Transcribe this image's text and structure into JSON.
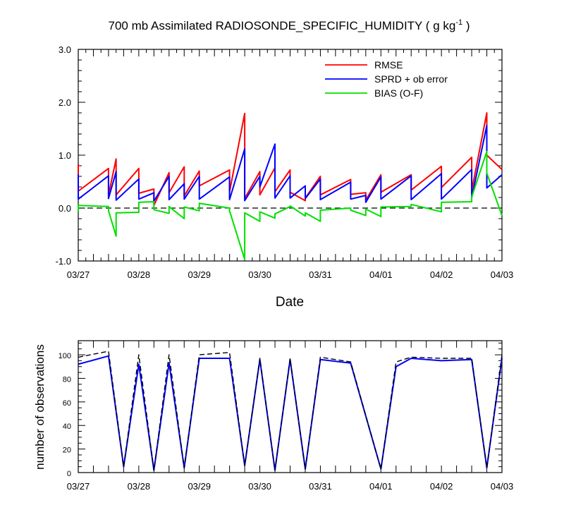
{
  "chart_data": [
    {
      "type": "line",
      "title": "700 mb Assimilated RADIOSONDE_SPECIFIC_HUMIDITY ( g kg",
      "title_superscript": "-1",
      "title_suffix": " )",
      "xlabel": "Date",
      "ylabel": "",
      "ylim": [
        -1.0,
        3.0
      ],
      "y_ticks": [
        "-1.0",
        "0.0",
        "1.0",
        "2.0",
        "3.0"
      ],
      "x_ticks": [
        "03/27",
        "03/28",
        "03/29",
        "03/30",
        "03/31",
        "04/01",
        "04/02",
        "04/03"
      ],
      "legend_position": "top-right",
      "zero_line": "dashed",
      "series": [
        {
          "name": "RMSE",
          "color": "#ff0000",
          "points": [
            [
              0,
              0.83
            ],
            [
              0,
              0.32
            ],
            [
              1.0,
              0.75
            ],
            [
              1.0,
              0.25
            ],
            [
              1.25,
              0.93
            ],
            [
              1.25,
              0.25
            ],
            [
              2.0,
              0.75
            ],
            [
              2.0,
              0.28
            ],
            [
              2.5,
              0.36
            ],
            [
              2.5,
              0.05
            ],
            [
              3.0,
              0.67
            ],
            [
              3.0,
              0.29
            ],
            [
              3.5,
              0.78
            ],
            [
              3.5,
              0.23
            ],
            [
              4.0,
              0.7
            ],
            [
              4.0,
              0.42
            ],
            [
              5.0,
              0.72
            ],
            [
              5.0,
              0.31
            ],
            [
              5.5,
              1.79
            ],
            [
              5.5,
              0.18
            ],
            [
              6.0,
              0.69
            ],
            [
              6.0,
              0.25
            ],
            [
              6.5,
              0.76
            ],
            [
              6.5,
              0.31
            ],
            [
              7.0,
              0.72
            ],
            [
              7.0,
              0.3
            ],
            [
              7.5,
              0.14
            ],
            [
              7.5,
              0.19
            ],
            [
              8.0,
              0.6
            ],
            [
              8.0,
              0.25
            ],
            [
              9.0,
              0.54
            ],
            [
              9.0,
              0.26
            ],
            [
              9.5,
              0.29
            ],
            [
              9.5,
              0.15
            ],
            [
              10.0,
              0.63
            ],
            [
              10.0,
              0.3
            ],
            [
              11.0,
              0.63
            ],
            [
              11.0,
              0.34
            ],
            [
              12.0,
              0.79
            ],
            [
              12.0,
              0.39
            ],
            [
              13.0,
              0.96
            ],
            [
              13.0,
              0.33
            ],
            [
              13.5,
              1.8
            ],
            [
              13.5,
              1.0
            ],
            [
              14.0,
              0.73
            ]
          ]
        },
        {
          "name": "SPRD + ob error",
          "color": "#0000ff",
          "points": [
            [
              0,
              0.64
            ],
            [
              0,
              0.17
            ],
            [
              1.0,
              0.61
            ],
            [
              1.0,
              0.18
            ],
            [
              1.25,
              0.69
            ],
            [
              1.25,
              0.15
            ],
            [
              2.0,
              0.55
            ],
            [
              2.0,
              0.17
            ],
            [
              2.5,
              0.29
            ],
            [
              2.5,
              0.13
            ],
            [
              3.0,
              0.6
            ],
            [
              3.0,
              0.16
            ],
            [
              3.5,
              0.46
            ],
            [
              3.5,
              0.17
            ],
            [
              4.0,
              0.6
            ],
            [
              4.0,
              0.17
            ],
            [
              5.0,
              0.59
            ],
            [
              5.0,
              0.16
            ],
            [
              5.5,
              1.12
            ],
            [
              5.5,
              0.14
            ],
            [
              6.0,
              0.6
            ],
            [
              6.0,
              0.4
            ],
            [
              6.5,
              1.21
            ],
            [
              6.5,
              0.19
            ],
            [
              7.0,
              0.61
            ],
            [
              7.0,
              0.19
            ],
            [
              7.5,
              0.42
            ],
            [
              7.5,
              0.18
            ],
            [
              8.0,
              0.55
            ],
            [
              8.0,
              0.16
            ],
            [
              9.0,
              0.49
            ],
            [
              9.0,
              0.17
            ],
            [
              9.5,
              0.24
            ],
            [
              9.5,
              0.11
            ],
            [
              10.0,
              0.59
            ],
            [
              10.0,
              0.17
            ],
            [
              11.0,
              0.61
            ],
            [
              11.0,
              0.16
            ],
            [
              12.0,
              0.65
            ],
            [
              12.0,
              0.17
            ],
            [
              13.0,
              0.73
            ],
            [
              13.0,
              0.2
            ],
            [
              13.5,
              1.56
            ],
            [
              13.5,
              0.38
            ],
            [
              14.0,
              0.63
            ]
          ]
        },
        {
          "name": "BIAS (O-F)",
          "color": "#00e000",
          "points": [
            [
              0,
              -0.07
            ],
            [
              0,
              0.05
            ],
            [
              1.0,
              0.03
            ],
            [
              1.0,
              -0.05
            ],
            [
              1.25,
              -0.53
            ],
            [
              1.25,
              -0.09
            ],
            [
              2.0,
              -0.08
            ],
            [
              2.0,
              0.11
            ],
            [
              2.5,
              0.12
            ],
            [
              2.5,
              -0.03
            ],
            [
              3.0,
              -0.1
            ],
            [
              3.0,
              0.03
            ],
            [
              3.5,
              -0.2
            ],
            [
              3.5,
              0.02
            ],
            [
              4.0,
              -0.05
            ],
            [
              4.0,
              0.09
            ],
            [
              5.0,
              0.0
            ],
            [
              5.0,
              -0.05
            ],
            [
              5.5,
              -0.97
            ],
            [
              5.5,
              -0.09
            ],
            [
              6.0,
              -0.25
            ],
            [
              6.0,
              -0.07
            ],
            [
              6.5,
              -0.19
            ],
            [
              6.5,
              -0.11
            ],
            [
              7.0,
              0.03
            ],
            [
              7.0,
              0.04
            ],
            [
              7.5,
              -0.15
            ],
            [
              7.5,
              -0.09
            ],
            [
              8.0,
              -0.25
            ],
            [
              8.0,
              -0.04
            ],
            [
              9.0,
              0.0
            ],
            [
              9.0,
              -0.04
            ],
            [
              9.5,
              -0.14
            ],
            [
              9.5,
              -0.02
            ],
            [
              10.0,
              -0.16
            ],
            [
              10.0,
              0.02
            ],
            [
              11.0,
              0.03
            ],
            [
              11.0,
              0.07
            ],
            [
              12.0,
              -0.07
            ],
            [
              12.0,
              0.11
            ],
            [
              13.0,
              0.12
            ],
            [
              13.0,
              0.21
            ],
            [
              13.5,
              1.07
            ],
            [
              13.5,
              0.66
            ],
            [
              14.0,
              -0.14
            ]
          ]
        }
      ]
    },
    {
      "type": "line",
      "title": "",
      "xlabel": "",
      "ylabel": "number of observations",
      "ylim": [
        0,
        112
      ],
      "y_ticks": [
        "0",
        "20",
        "40",
        "60",
        "80",
        "100"
      ],
      "x_ticks": [
        "03/27",
        "03/28",
        "03/29",
        "03/30",
        "03/31",
        "04/01",
        "04/02",
        "04/03"
      ],
      "series": [
        {
          "color": "#0000ff",
          "style": "solid",
          "points": [
            [
              0,
              92
            ],
            [
              1.0,
              99
            ],
            [
              1.5,
              5
            ],
            [
              2.0,
              92
            ],
            [
              2.5,
              2
            ],
            [
              3.0,
              93
            ],
            [
              3.5,
              4
            ],
            [
              4.0,
              97
            ],
            [
              5.0,
              97
            ],
            [
              5.5,
              6
            ],
            [
              6.0,
              96
            ],
            [
              6.5,
              2
            ],
            [
              7.0,
              96
            ],
            [
              7.5,
              3
            ],
            [
              8.0,
              96
            ],
            [
              9.0,
              93
            ],
            [
              10.0,
              3
            ],
            [
              10.0,
              3
            ],
            [
              10.5,
              90
            ],
            [
              11.0,
              97
            ],
            [
              12.0,
              95
            ],
            [
              13.0,
              96
            ],
            [
              13.5,
              4
            ],
            [
              14.0,
              97
            ]
          ]
        },
        {
          "color": "#000000",
          "style": "dashed",
          "points": [
            [
              0,
              98
            ],
            [
              1.0,
              103
            ],
            [
              1.5,
              5
            ],
            [
              2.0,
              100
            ],
            [
              2.5,
              2
            ],
            [
              3.0,
              100
            ],
            [
              3.5,
              4
            ],
            [
              4.0,
              100
            ],
            [
              5.0,
              102
            ],
            [
              5.5,
              6
            ],
            [
              6.0,
              97
            ],
            [
              6.5,
              2
            ],
            [
              7.0,
              97
            ],
            [
              7.5,
              3
            ],
            [
              8.0,
              98
            ],
            [
              9.0,
              94
            ],
            [
              10.0,
              3
            ],
            [
              10.5,
              94
            ],
            [
              11.0,
              98
            ],
            [
              12.0,
              97
            ],
            [
              13.0,
              97
            ],
            [
              13.5,
              4
            ],
            [
              14.0,
              100
            ]
          ]
        }
      ]
    }
  ]
}
